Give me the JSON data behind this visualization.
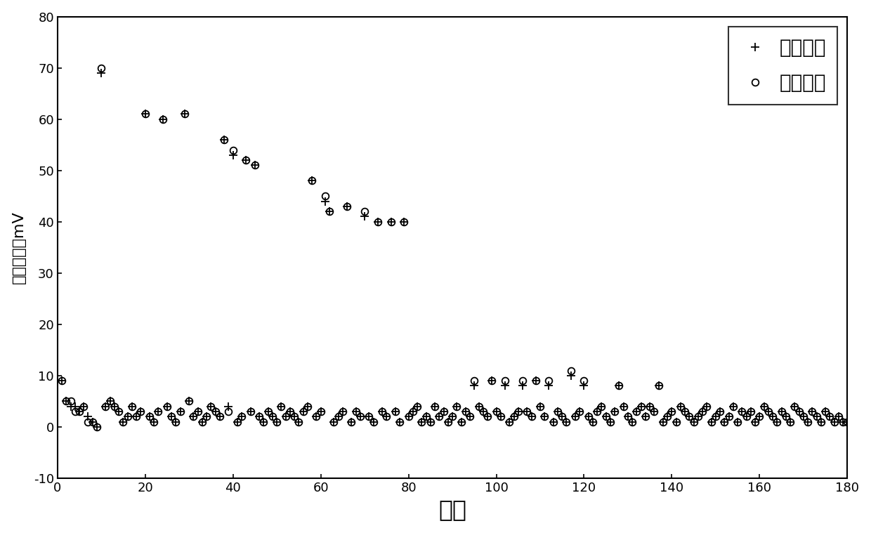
{
  "xlabel": "数据",
  "ylabel": "输出电压／mV",
  "xlim": [
    0,
    180
  ],
  "ylim": [
    -10,
    80
  ],
  "xticks": [
    0,
    20,
    40,
    60,
    80,
    100,
    120,
    140,
    160,
    180
  ],
  "yticks": [
    -10,
    0,
    10,
    20,
    30,
    40,
    50,
    60,
    70,
    80
  ],
  "legend_original": "原始信号",
  "legend_recon": "重构信号",
  "original_x": [
    1,
    2,
    3,
    4,
    5,
    6,
    7,
    8,
    9,
    10,
    11,
    12,
    13,
    14,
    15,
    16,
    17,
    18,
    19,
    20,
    21,
    22,
    23,
    24,
    25,
    26,
    27,
    28,
    29,
    30,
    31,
    32,
    33,
    34,
    35,
    36,
    37,
    38,
    39,
    40,
    41,
    42,
    43,
    44,
    45,
    46,
    47,
    48,
    49,
    50,
    51,
    52,
    53,
    54,
    55,
    56,
    57,
    58,
    59,
    60,
    61,
    62,
    63,
    64,
    65,
    66,
    67,
    68,
    69,
    70,
    71,
    72,
    73,
    74,
    75,
    76,
    77,
    78,
    79,
    80,
    81,
    82,
    83,
    84,
    85,
    86,
    87,
    88,
    89,
    90,
    91,
    92,
    93,
    94,
    95,
    96,
    97,
    98,
    99,
    100,
    101,
    102,
    103,
    104,
    105,
    106,
    107,
    108,
    109,
    110,
    111,
    112,
    113,
    114,
    115,
    116,
    117,
    118,
    119,
    120,
    121,
    122,
    123,
    124,
    125,
    126,
    127,
    128,
    129,
    130,
    131,
    132,
    133,
    134,
    135,
    136,
    137,
    138,
    139,
    140,
    141,
    142,
    143,
    144,
    145,
    146,
    147,
    148,
    149,
    150,
    151,
    152,
    153,
    154,
    155,
    156,
    157,
    158,
    159,
    160,
    161,
    162,
    163,
    164,
    165,
    166,
    167,
    168,
    169,
    170,
    171,
    172,
    173,
    174,
    175,
    176,
    177,
    178,
    179,
    180
  ],
  "original_y": [
    9,
    5,
    4,
    4,
    3,
    4,
    2,
    1,
    0,
    69,
    4,
    5,
    4,
    3,
    1,
    2,
    4,
    2,
    3,
    61,
    2,
    1,
    3,
    60,
    4,
    2,
    1,
    3,
    61,
    5,
    2,
    3,
    1,
    2,
    4,
    3,
    2,
    56,
    4,
    53,
    1,
    2,
    52,
    3,
    51,
    2,
    1,
    3,
    2,
    1,
    4,
    2,
    3,
    2,
    1,
    3,
    4,
    48,
    2,
    3,
    44,
    42,
    1,
    2,
    3,
    43,
    1,
    3,
    2,
    41,
    2,
    1,
    40,
    3,
    2,
    40,
    3,
    1,
    40,
    2,
    3,
    4,
    1,
    2,
    1,
    4,
    2,
    3,
    1,
    2,
    4,
    1,
    3,
    2,
    8,
    4,
    3,
    2,
    9,
    3,
    2,
    8,
    1,
    2,
    3,
    8,
    3,
    2,
    9,
    4,
    2,
    8,
    1,
    3,
    2,
    1,
    10,
    2,
    3,
    8,
    2,
    1,
    3,
    4,
    2,
    1,
    3,
    8,
    4,
    2,
    1,
    3,
    4,
    2,
    4,
    3,
    8,
    1,
    2,
    3,
    1,
    4,
    3,
    2,
    1,
    2,
    3,
    4,
    1,
    2,
    3,
    1,
    2,
    4,
    1,
    3,
    2,
    3,
    1,
    2,
    4,
    3,
    2,
    1,
    3,
    2,
    1,
    4,
    3,
    2,
    1,
    3,
    2,
    1,
    3,
    2,
    1,
    2,
    1,
    1
  ],
  "recon_y": [
    9,
    5,
    5,
    3,
    3,
    4,
    1,
    1,
    0,
    70,
    4,
    5,
    4,
    3,
    1,
    2,
    4,
    2,
    3,
    61,
    2,
    1,
    3,
    60,
    4,
    2,
    1,
    3,
    61,
    5,
    2,
    3,
    1,
    2,
    4,
    3,
    2,
    56,
    3,
    54,
    1,
    2,
    52,
    3,
    51,
    2,
    1,
    3,
    2,
    1,
    4,
    2,
    3,
    2,
    1,
    3,
    4,
    48,
    2,
    3,
    45,
    42,
    1,
    2,
    3,
    43,
    1,
    3,
    2,
    42,
    2,
    1,
    40,
    3,
    2,
    40,
    3,
    1,
    40,
    2,
    3,
    4,
    1,
    2,
    1,
    4,
    2,
    3,
    1,
    2,
    4,
    1,
    3,
    2,
    9,
    4,
    3,
    2,
    9,
    3,
    2,
    9,
    1,
    2,
    3,
    9,
    3,
    2,
    9,
    4,
    2,
    9,
    1,
    3,
    2,
    1,
    11,
    2,
    3,
    9,
    2,
    1,
    3,
    4,
    2,
    1,
    3,
    8,
    4,
    2,
    1,
    3,
    4,
    2,
    4,
    3,
    8,
    1,
    2,
    3,
    1,
    4,
    3,
    2,
    1,
    2,
    3,
    4,
    1,
    2,
    3,
    1,
    2,
    4,
    1,
    3,
    2,
    3,
    1,
    2,
    4,
    3,
    2,
    1,
    3,
    2,
    1,
    4,
    3,
    2,
    1,
    3,
    2,
    1,
    3,
    2,
    1,
    2,
    1,
    1
  ]
}
